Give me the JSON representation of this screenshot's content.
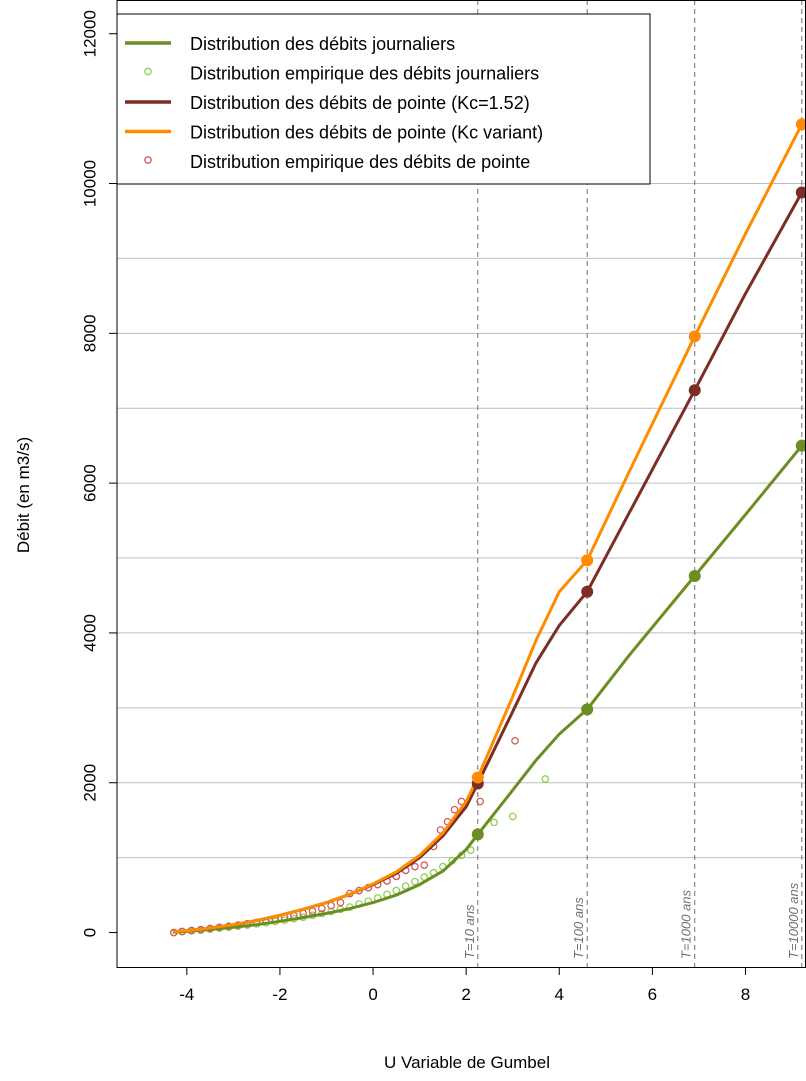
{
  "chart_data": {
    "type": "line",
    "xlabel": "U Variable de Gumbel",
    "ylabel": "Débit  (en m3/s)",
    "xlim": [
      -5.5,
      9.3
    ],
    "ylim": [
      -460,
      12450
    ],
    "x_ticks": [
      -4,
      -2,
      0,
      2,
      4,
      6,
      8
    ],
    "y_ticks": [
      0,
      2000,
      4000,
      6000,
      8000,
      10000,
      12000
    ],
    "y_grid": [
      1000,
      2000,
      3000,
      4000,
      5000,
      6000,
      7000,
      8000,
      9000,
      10000
    ],
    "grid": true,
    "legend_position": "top-left",
    "colors": {
      "daily": "#6b8e23",
      "daily_empirical": "#8fd14f",
      "peak_fixed": "#7b2d26",
      "peak_variable": "#ff8c00",
      "peak_empirical": "#cd5c5c",
      "grid": "#bebebe",
      "period_line": "#707070"
    },
    "return_periods": [
      {
        "label": "T=10 ans",
        "u": 2.25
      },
      {
        "label": "T=100 ans",
        "u": 4.6
      },
      {
        "label": "T=1000 ans",
        "u": 6.91
      },
      {
        "label": "T=10000 ans",
        "u": 9.21
      }
    ],
    "series": [
      {
        "name": "Distribution des débits journaliers",
        "kind": "line",
        "color_key": "daily",
        "x": [
          -4.3,
          -4,
          -3.5,
          -3,
          -2.5,
          -2,
          -1.5,
          -1,
          -0.5,
          0,
          0.5,
          1,
          1.5,
          2,
          2.25,
          3,
          3.5,
          4,
          4.6,
          5.5,
          6.91,
          8,
          9.21
        ],
        "y": [
          5,
          15,
          40,
          70,
          105,
          150,
          200,
          255,
          320,
          400,
          500,
          640,
          820,
          1110,
          1310,
          1900,
          2300,
          2650,
          2980,
          3700,
          4760,
          5580,
          6500
        ],
        "markers": [
          [
            2.25,
            1310
          ],
          [
            4.6,
            2980
          ],
          [
            6.91,
            4760
          ],
          [
            9.21,
            6500
          ]
        ]
      },
      {
        "name": "Distribution empirique des débits journaliers",
        "kind": "points",
        "color_key": "daily_empirical",
        "x": [
          -4.28,
          -4.1,
          -3.9,
          -3.7,
          -3.5,
          -3.3,
          -3.1,
          -2.9,
          -2.7,
          -2.5,
          -2.3,
          -2.1,
          -1.9,
          -1.7,
          -1.5,
          -1.3,
          -1.1,
          -0.9,
          -0.7,
          -0.5,
          -0.3,
          -0.1,
          0.1,
          0.3,
          0.5,
          0.7,
          0.9,
          1.1,
          1.3,
          1.5,
          1.7,
          1.9,
          2.1,
          2.6,
          3.0,
          3.7
        ],
        "y": [
          0,
          12,
          22,
          32,
          45,
          58,
          70,
          85,
          100,
          115,
          130,
          148,
          165,
          185,
          205,
          230,
          255,
          280,
          310,
          340,
          380,
          420,
          460,
          510,
          560,
          620,
          680,
          740,
          800,
          880,
          960,
          1030,
          1100,
          1470,
          1550,
          2050
        ]
      },
      {
        "name": "Distribution des débits de pointe (Kc=1.52)",
        "kind": "line",
        "color_key": "peak_fixed",
        "x": [
          -4.3,
          -4,
          -3.5,
          -3,
          -2.5,
          -2,
          -1.5,
          -1,
          -0.5,
          0,
          0.5,
          1,
          1.5,
          2,
          2.25,
          3,
          3.5,
          4,
          4.6,
          5.5,
          6.91,
          8,
          9.21
        ],
        "y": [
          10,
          25,
          60,
          105,
          160,
          230,
          310,
          400,
          510,
          640,
          790,
          1000,
          1290,
          1680,
          1990,
          2950,
          3600,
          4100,
          4550,
          5600,
          7240,
          8530,
          9880
        ],
        "markers": [
          [
            2.25,
            1990
          ],
          [
            4.6,
            4550
          ],
          [
            6.91,
            7240
          ],
          [
            9.21,
            9880
          ]
        ]
      },
      {
        "name": "Distribution des débits de pointe (Kc variant)",
        "kind": "line",
        "color_key": "peak_variable",
        "x": [
          -4.3,
          -4,
          -3.5,
          -3,
          -2.5,
          -2,
          -1.5,
          -1,
          -0.5,
          0,
          0.5,
          1,
          1.5,
          2,
          2.25,
          3,
          3.5,
          4,
          4.6,
          5.5,
          6.91,
          8,
          9.21
        ],
        "y": [
          10,
          25,
          60,
          105,
          160,
          230,
          310,
          400,
          510,
          650,
          810,
          1030,
          1330,
          1750,
          2070,
          3150,
          3900,
          4550,
          4970,
          6150,
          7960,
          9330,
          10790
        ],
        "markers": [
          [
            2.25,
            2070
          ],
          [
            4.6,
            4970
          ],
          [
            6.91,
            7960
          ],
          [
            9.21,
            10790
          ]
        ]
      },
      {
        "name": "Distribution empirique des débits de pointe",
        "kind": "points",
        "color_key": "peak_empirical",
        "x": [
          -4.28,
          -4.1,
          -3.9,
          -3.7,
          -3.5,
          -3.3,
          -3.1,
          -2.9,
          -2.7,
          -2.5,
          -2.3,
          -2.1,
          -1.9,
          -1.7,
          -1.5,
          -1.3,
          -1.1,
          -0.9,
          -0.7,
          -0.5,
          -0.3,
          -0.1,
          0.1,
          0.3,
          0.5,
          0.7,
          0.9,
          1.1,
          1.3,
          1.45,
          1.6,
          1.75,
          1.9,
          2.3,
          3.05
        ],
        "y": [
          0,
          15,
          28,
          40,
          55,
          70,
          85,
          100,
          118,
          135,
          155,
          175,
          200,
          225,
          255,
          285,
          320,
          360,
          400,
          520,
          560,
          600,
          640,
          690,
          750,
          830,
          880,
          900,
          1150,
          1370,
          1480,
          1640,
          1750,
          1750,
          2560
        ]
      }
    ]
  }
}
